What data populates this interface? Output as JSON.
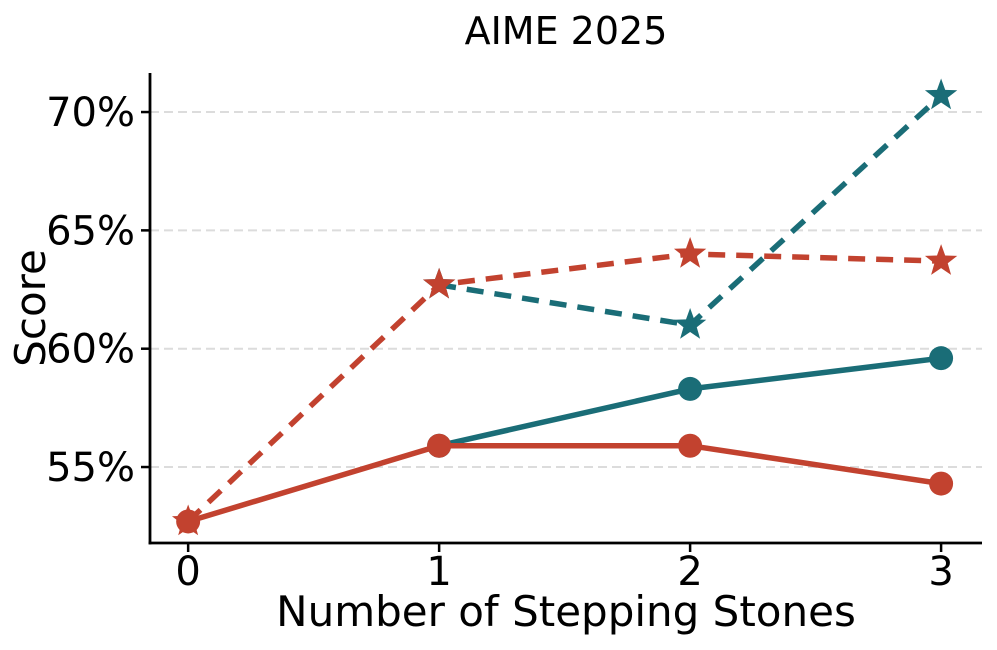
{
  "chart_data": {
    "type": "line",
    "title": "AIME 2025",
    "xlabel": "Number of Stepping Stones",
    "ylabel": "Score",
    "x_ticks": [
      0,
      1,
      2,
      3
    ],
    "y_ticks": [
      55,
      60,
      65,
      70
    ],
    "y_tick_labels": [
      "55%",
      "60%",
      "65%",
      "70%"
    ],
    "xlim": [
      -0.152,
      3.163
    ],
    "ylim": [
      51.79,
      71.65
    ],
    "grid": {
      "axis": "y",
      "style": "dashed"
    },
    "legend": "none",
    "colors": {
      "teal": "#1a6d77",
      "red": "#c2422f",
      "grid": "#dcdcdc",
      "axis": "#000000",
      "background": "#ffffff"
    },
    "series": [
      {
        "name": "teal-solid-circles",
        "color_key": "teal",
        "line_style": "solid",
        "marker": "circle",
        "x": [
          1,
          2,
          3
        ],
        "y": [
          55.9,
          58.3,
          59.6
        ]
      },
      {
        "name": "red-solid-circles",
        "color_key": "red",
        "line_style": "solid",
        "marker": "circle",
        "x": [
          0,
          1,
          2,
          3
        ],
        "y": [
          52.7,
          55.9,
          55.9,
          54.3
        ]
      },
      {
        "name": "teal-dashed-stars",
        "color_key": "teal",
        "line_style": "dashed",
        "marker": "star",
        "x": [
          1,
          2,
          3
        ],
        "y": [
          62.7,
          61.0,
          70.7
        ]
      },
      {
        "name": "red-dashed-stars",
        "color_key": "red",
        "line_style": "dashed",
        "marker": "star",
        "x": [
          0,
          1,
          2,
          3
        ],
        "y": [
          52.7,
          62.7,
          64.0,
          63.7
        ]
      }
    ]
  }
}
